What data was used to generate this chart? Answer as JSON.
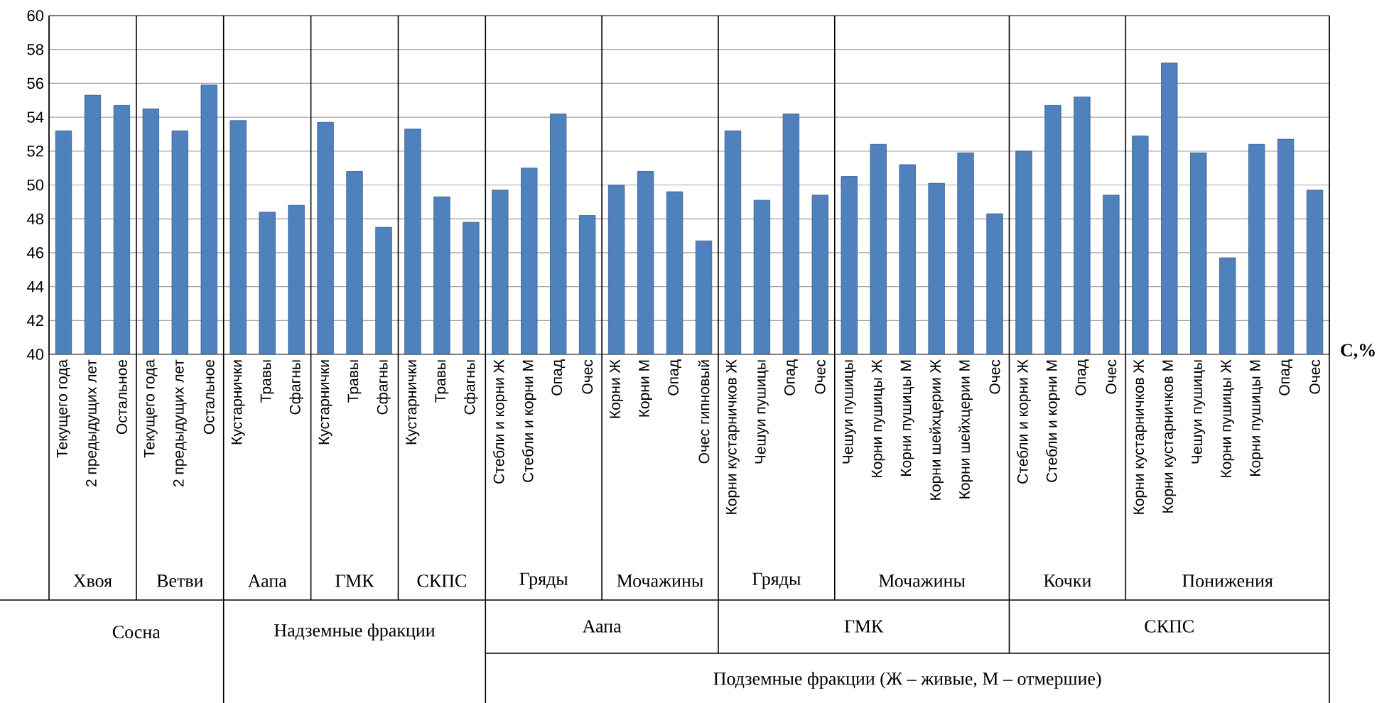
{
  "chart_data": {
    "type": "bar",
    "ylabel": "C,%",
    "color": "#4f81bd",
    "ylim": [
      40,
      60
    ],
    "yticks": [
      40,
      42,
      44,
      46,
      48,
      50,
      52,
      54,
      56,
      58,
      60
    ],
    "grid": "y",
    "categories": [
      "Текущего года",
      "2 предыдущих лет",
      "Остальное",
      "Текущего года",
      "2 предыдущих лет",
      "Остальное",
      "Кустарнички",
      "Травы",
      "Сфагны",
      "Кустарнички",
      "Травы",
      "Сфагны",
      "Кустарнички",
      "Травы",
      "Сфагны",
      "Стебли и корни Ж",
      "Стебли и корни М",
      "Опад",
      "Очес",
      "Корни Ж",
      "Корни М",
      "Опад",
      "Очес гипновый",
      "Корни кустарничков Ж",
      "Чешуи пушицы",
      "Опад",
      "Очес",
      "Чешуи пушицы",
      "Корни пушицы Ж",
      "Корни пушицы М",
      "Корни шейхцерии Ж",
      "Корни шейхцерии М",
      "Очес",
      "Стебли и корни Ж",
      "Стебли и корни М",
      "Опад",
      "Очес",
      "Корни кустарничков Ж",
      "Корни кустарничков М",
      "Чешуи пушицы",
      "Корни пушицы Ж",
      "Корни пушицы М",
      "Опад",
      "Очес"
    ],
    "values": [
      53.2,
      55.3,
      54.7,
      54.5,
      53.2,
      55.9,
      53.8,
      48.4,
      48.8,
      53.7,
      50.8,
      47.5,
      53.3,
      49.3,
      47.8,
      49.7,
      51.0,
      54.2,
      48.2,
      50.0,
      50.8,
      49.6,
      46.7,
      53.2,
      49.1,
      54.2,
      49.4,
      50.5,
      52.4,
      51.2,
      50.1,
      51.9,
      48.3,
      52.0,
      54.7,
      55.2,
      49.4,
      52.9,
      57.2,
      51.9,
      45.7,
      52.4,
      52.7,
      49.7
    ],
    "annotations": [
      "Хвоя",
      "Ветви",
      "Аапа",
      "ГМК",
      "СКПС",
      "Гряды",
      "Мочажины",
      "Гряды",
      "Мочажины",
      "Кочки",
      "Понижения",
      "Сосна",
      "Надземные фракции",
      "Аапа",
      "ГМК",
      "СКПС",
      "Подземные фракции (Ж – живые, М – отмершие)"
    ]
  }
}
